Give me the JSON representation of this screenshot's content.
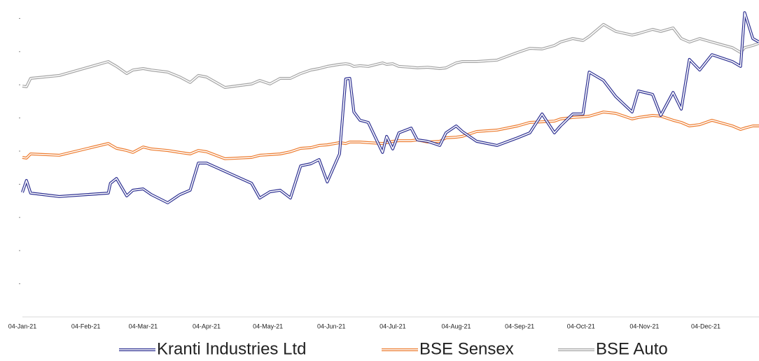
{
  "chart_data": {
    "type": "line",
    "x": [
      "04-Jan-21",
      "06-Jan-21",
      "08-Jan-21",
      "22-Jan-21",
      "15-Feb-21",
      "16-Feb-21",
      "19-Feb-21",
      "24-Feb-21",
      "27-Feb-21",
      "04-Mar-21",
      "08-Mar-21",
      "16-Mar-21",
      "22-Mar-21",
      "27-Mar-21",
      "31-Mar-21",
      "04-Apr-21",
      "13-Apr-21",
      "26-Apr-21",
      "30-Apr-21",
      "05-May-21",
      "10-May-21",
      "15-May-21",
      "20-May-21",
      "25-May-21",
      "29-May-21",
      "02-Jun-21",
      "08-Jun-21",
      "11-Jun-21",
      "13-Jun-21",
      "15-Jun-21",
      "18-Jun-21",
      "22-Jun-21",
      "29-Jun-21",
      "01-Jul-21",
      "04-Jul-21",
      "07-Jul-21",
      "13-Jul-21",
      "16-Jul-21",
      "21-Jul-21",
      "27-Jul-21",
      "30-Jul-21",
      "04-Aug-21",
      "07-Aug-21",
      "14-Aug-21",
      "24-Aug-21",
      "03-Sep-21",
      "09-Sep-21",
      "15-Sep-21",
      "21-Sep-21",
      "24-Sep-21",
      "30-Sep-21",
      "05-Oct-21",
      "08-Oct-21",
      "15-Oct-21",
      "21-Oct-21",
      "29-Oct-21",
      "01-Nov-21",
      "08-Nov-21",
      "12-Nov-21",
      "18-Nov-21",
      "22-Nov-21",
      "26-Nov-21",
      "01-Dec-21",
      "07-Dec-21",
      "17-Dec-21",
      "21-Dec-21",
      "23-Dec-21",
      "27-Dec-21",
      "30-Dec-21"
    ],
    "series": [
      {
        "name": "Kranti Industries Ltd",
        "color": "#2e3192",
        "values": [
          75.1,
          82.3,
          74.7,
          72.6,
          74.7,
          80.6,
          83.5,
          73,
          76.4,
          77.2,
          73.8,
          68.8,
          73.8,
          76.4,
          92.8,
          92.8,
          87.8,
          80.6,
          71.7,
          75.5,
          76.4,
          71.7,
          91.1,
          92.4,
          94.9,
          81.4,
          98.3,
          143.5,
          143.9,
          123.6,
          118.6,
          117.3,
          99.2,
          108.9,
          101.3,
          111,
          113.9,
          106.8,
          105.9,
          103.4,
          111,
          115.2,
          111.8,
          105.9,
          103.4,
          108,
          111,
          122.4,
          111,
          115.2,
          122.4,
          122.4,
          147.7,
          142.6,
          132.9,
          123.6,
          136.3,
          134.2,
          121.5,
          135.4,
          125.3,
          155.3,
          148.9,
          158.2,
          154,
          151.1,
          183.5,
          167.9,
          165.8
        ]
      },
      {
        "name": "BSE Sensex",
        "color": "#ed7d31",
        "values": [
          96.2,
          95.8,
          98.3,
          97.5,
          104.6,
          103.8,
          101.7,
          100.4,
          99.2,
          102.5,
          101.3,
          100.4,
          99.2,
          98.3,
          100.4,
          99.6,
          95.4,
          96.2,
          97.5,
          97.9,
          98.3,
          99.6,
          101.7,
          102.1,
          103.4,
          103.8,
          105.1,
          104.6,
          105.5,
          105.5,
          105.5,
          105.1,
          104.6,
          105.1,
          105.9,
          106.3,
          106.3,
          106.8,
          105.5,
          105.9,
          108,
          108.4,
          108.9,
          111.8,
          112.7,
          115.2,
          117.3,
          117.7,
          118.1,
          119.4,
          120.3,
          120.7,
          121.1,
          123.6,
          122.8,
          119.4,
          120.3,
          121.5,
          121.1,
          118.6,
          117.3,
          115.2,
          116,
          118.6,
          115.2,
          113.1,
          113.9,
          115.2,
          115.2
        ]
      },
      {
        "name": "BSE Auto",
        "color": "#a5a5a5",
        "values": [
          139.2,
          138.8,
          143.9,
          145.6,
          154,
          153.2,
          151.1,
          146.8,
          148.9,
          149.8,
          148.9,
          147.7,
          144.7,
          141.4,
          145.6,
          144.7,
          138.4,
          140.5,
          142.6,
          140.5,
          143.9,
          143.9,
          146.8,
          148.9,
          149.8,
          151.1,
          152.3,
          152.7,
          152.3,
          151.1,
          151.5,
          151.1,
          153.2,
          152.3,
          152.7,
          151.1,
          150.6,
          150.2,
          150.6,
          149.8,
          150.2,
          153.2,
          154,
          154,
          154.9,
          159.5,
          162,
          161.6,
          163.7,
          165.8,
          167.9,
          166.7,
          169.2,
          176.4,
          172.2,
          170,
          170.9,
          173.4,
          172.2,
          174.3,
          167.9,
          165.8,
          167.9,
          165.8,
          162.4,
          159.5,
          162.4,
          163.7,
          165
        ]
      }
    ],
    "xlim": [
      "04-Jan-21",
      "30-Dec-21"
    ],
    "xticks": [
      "04-Jan-21",
      "04-Feb-21",
      "04-Mar-21",
      "04-Apr-21",
      "04-May-21",
      "04-Jun-21",
      "04-Jul-21",
      "04-Aug-21",
      "04-Sep-21",
      "04-Oct-21",
      "04-Nov-21",
      "04-Dec-21"
    ],
    "ylim": [
      0,
      190
    ],
    "yticks": [
      20,
      40,
      60,
      80,
      100,
      120,
      140,
      160,
      180
    ],
    "grid": false,
    "legend": "bottom"
  }
}
